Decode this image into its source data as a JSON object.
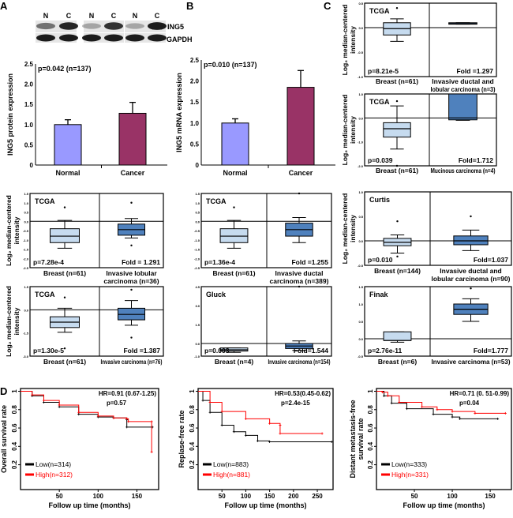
{
  "panel_labels": {
    "a": "A",
    "b": "B",
    "c": "C",
    "d": "D"
  },
  "blot": {
    "lanes": [
      "N",
      "C",
      "N",
      "C",
      "N",
      "C"
    ],
    "rows": [
      "ING5",
      "GAPDH"
    ]
  },
  "chart_data": [
    {
      "type": "bar",
      "id": "A-bar",
      "categories": [
        "Normal",
        "Cancer"
      ],
      "values": [
        1.0,
        1.28
      ],
      "errors": [
        0.12,
        0.27
      ],
      "colors": [
        "#9999ff",
        "#993366"
      ],
      "ylabel": "ING5 protein expression",
      "ylim": [
        0,
        2.5
      ],
      "yticks": [
        "0",
        "0.5",
        "1.0",
        "1.5",
        "2.0",
        "2.5"
      ],
      "annotation": "p=0.042 (n=137)"
    },
    {
      "type": "bar",
      "id": "B-bar",
      "categories": [
        "Normal",
        "Cancer"
      ],
      "values": [
        1.0,
        1.85
      ],
      "errors": [
        0.1,
        0.4
      ],
      "colors": [
        "#9999ff",
        "#993366"
      ],
      "ylabel": "ING5 mRNA expression",
      "ylim": [
        0,
        2.5
      ],
      "yticks": [
        "0",
        "0.5",
        "1.0",
        "1.5",
        "2.0",
        "2.5"
      ],
      "annotation": "p=0.010 (n=137)"
    },
    {
      "type": "box",
      "id": "C1",
      "dataset": "TCGA",
      "p": "p=8.21e-5",
      "fold": "Fold =1.297",
      "ylim": [
        -1.0,
        0.5
      ],
      "yticks": [
        "0.5",
        "0.0",
        "-0.5",
        "-1.0"
      ],
      "groups": [
        {
          "label": [
            "Breast (n=61)"
          ],
          "min": -0.28,
          "q1": -0.15,
          "median": -0.02,
          "q3": 0.1,
          "max": 0.18,
          "outliers": [
            0.4
          ]
        },
        {
          "label": [
            "Invasive ductal and",
            "lobular carcinoma (n=3)"
          ],
          "min": 0.07,
          "q1": 0.07,
          "median": 0.08,
          "q3": 0.1,
          "max": 0.1,
          "outliers": []
        }
      ]
    },
    {
      "type": "box",
      "id": "C2",
      "dataset": "TCGA",
      "p": "p=0.039",
      "fold": "Fold=1.712",
      "ylim": [
        -2.0,
        1.0
      ],
      "yticks": [
        "1.0",
        "0.0",
        "-1.0",
        "-2.0"
      ],
      "groups": [
        {
          "label": [
            "Breast (n=61)"
          ],
          "min": -1.3,
          "q1": -0.8,
          "median": -0.45,
          "q3": -0.2,
          "max": 0.5,
          "outliers": [
            0.7,
            -2.0
          ]
        },
        {
          "label": [
            "Mucinous carcinoma (n=4)"
          ],
          "min": -0.1,
          "q1": -0.08,
          "median": 0.0,
          "q3": 1.0,
          "max": 1.0,
          "outliers": []
        }
      ]
    },
    {
      "type": "box",
      "id": "A-row2",
      "dataset": "TCGA",
      "p": "p=7.28e-4",
      "fold": "Fold = 1.291",
      "ylim": [
        -2.5,
        1.5
      ],
      "yticks": [
        "1.5",
        "1.0",
        "0.5",
        "0.0",
        "-0.5",
        "-1.0",
        "-1.5",
        "-2.0",
        "-2.5"
      ],
      "groups": [
        {
          "label": [
            "Breast (n=61)"
          ],
          "min": -1.45,
          "q1": -1.15,
          "median": -0.8,
          "q3": -0.4,
          "max": 0.05,
          "outliers": [
            0.75
          ]
        },
        {
          "label": [
            "Invasive lobular",
            "carcinoma (n=36)"
          ],
          "min": -0.9,
          "q1": -0.75,
          "median": -0.45,
          "q3": -0.15,
          "max": 0.15,
          "outliers": [
            1.0,
            -1.3
          ]
        }
      ]
    },
    {
      "type": "box",
      "id": "B-row2",
      "dataset": "TCGA",
      "p": "p=1.36e-4",
      "fold": "Fold =1.255",
      "ylim": [
        -2.5,
        1.5
      ],
      "yticks": [
        "1.5",
        "1.0",
        "0.5",
        "0.0",
        "-0.5",
        "-1.0",
        "-1.5",
        "-2.0",
        "-2.5"
      ],
      "groups": [
        {
          "label": [
            "Breast (n=61)"
          ],
          "min": -1.45,
          "q1": -1.15,
          "median": -0.8,
          "q3": -0.4,
          "max": 0.05,
          "outliers": [
            0.75
          ]
        },
        {
          "label": [
            "Invasive ductal",
            "carcinoma (n=389)"
          ],
          "min": -1.15,
          "q1": -0.8,
          "median": -0.45,
          "q3": -0.1,
          "max": 0.2,
          "outliers": [
            1.5
          ]
        }
      ]
    },
    {
      "type": "box",
      "id": "C-row2",
      "dataset": "Curtis",
      "p": "p=0.010",
      "fold": "Fold=1.037",
      "ylim": [
        -0.5,
        1.0
      ],
      "yticks": [
        "1.0",
        "0.5",
        "0.0",
        "-0.5"
      ],
      "groups": [
        {
          "label": [
            "Breast (n=144)"
          ],
          "min": -0.25,
          "q1": -0.1,
          "median": -0.03,
          "q3": 0.05,
          "max": 0.12,
          "outliers": [
            0.4,
            -0.32
          ]
        },
        {
          "label": [
            "Invasive ductal and",
            "lobular carcinoma (n=90)"
          ],
          "min": -0.2,
          "q1": -0.08,
          "median": 0.0,
          "q3": 0.1,
          "max": 0.22,
          "outliers": [
            0.5
          ]
        }
      ]
    },
    {
      "type": "box",
      "id": "A-row3",
      "dataset": "TCGA",
      "p": "p=1.30e-5",
      "fold": "Fold =1.387",
      "ylim": [
        -3.0,
        1.5
      ],
      "yticks": [
        "1.5",
        "0.0",
        "-1.5",
        "-3.0"
      ],
      "groups": [
        {
          "label": [
            "Breast (n=61)"
          ],
          "min": -1.45,
          "q1": -1.15,
          "median": -0.8,
          "q3": -0.45,
          "max": 0.1,
          "outliers": [
            0.8,
            -2.5
          ]
        },
        {
          "label": [
            "Invasive carcinoma (n=76)"
          ],
          "min": -1.0,
          "q1": -0.65,
          "median": -0.3,
          "q3": 0.1,
          "max": 0.6,
          "outliers": [
            1.3,
            -1.8
          ]
        }
      ]
    },
    {
      "type": "box",
      "id": "B-row3",
      "dataset": "Gluck",
      "p": "p=0.003",
      "fold": "Fold=1.544",
      "ylim": [
        -1.0,
        4.5
      ],
      "yticks": [
        "4.5",
        "3.0",
        "1.5",
        "0.0",
        "-1.0"
      ],
      "groups": [
        {
          "label": [
            "Breast (n=4)"
          ],
          "min": -0.7,
          "q1": -0.6,
          "median": -0.5,
          "q3": -0.35,
          "max": -0.35,
          "outliers": []
        },
        {
          "label": [
            "Invasive carcinoma (n=154)"
          ],
          "min": -0.55,
          "q1": -0.4,
          "median": -0.2,
          "q3": 0.0,
          "max": 0.2,
          "outliers": [
            4.5
          ]
        }
      ]
    },
    {
      "type": "box",
      "id": "C-row3",
      "dataset": "Finak",
      "p": "p=2.76e-11",
      "fold": "Fold=1.777",
      "ylim": [
        -0.5,
        1.5
      ],
      "yticks": [
        "1.5",
        "1.0",
        "0.5",
        "0.0",
        "-0.5"
      ],
      "groups": [
        {
          "label": [
            "Breast (n=6)"
          ],
          "min": -0.1,
          "q1": -0.05,
          "median": -0.05,
          "q3": 0.2,
          "max": 0.2,
          "outliers": []
        },
        {
          "label": [
            "Invasive carcinoma (n=53)"
          ],
          "min": 0.5,
          "q1": 0.7,
          "median": 0.85,
          "q3": 1.0,
          "max": 1.15,
          "outliers": [
            1.45
          ]
        }
      ]
    },
    {
      "type": "line",
      "id": "D1",
      "ylabel": "Overall survival rate",
      "xlabel": "Follow up time (months)",
      "xlim": [
        0,
        178
      ],
      "xticks": [
        50,
        100,
        150
      ],
      "ylim": [
        -0.07,
        1.03
      ],
      "yticks": [
        0.2,
        0.4,
        0.6,
        0.8,
        1.0
      ],
      "hr": "HR=0.91 (0.67-1.25)",
      "p": "p=0.57",
      "series": [
        {
          "name": "Low(n=314)",
          "color": "#000000",
          "points": [
            [
              0,
              1
            ],
            [
              15,
              0.95
            ],
            [
              30,
              0.88
            ],
            [
              50,
              0.83
            ],
            [
              75,
              0.75
            ],
            [
              100,
              0.72
            ],
            [
              120,
              0.71
            ],
            [
              137,
              0.69
            ],
            [
              137,
              0.61
            ],
            [
              170,
              0.61
            ]
          ]
        },
        {
          "name": "High(n=312)",
          "color": "#ff0000",
          "points": [
            [
              0,
              1
            ],
            [
              15,
              0.96
            ],
            [
              30,
              0.9
            ],
            [
              50,
              0.85
            ],
            [
              75,
              0.77
            ],
            [
              100,
              0.73
            ],
            [
              120,
              0.71
            ],
            [
              137,
              0.7
            ],
            [
              139,
              0.67
            ],
            [
              169,
              0.67
            ],
            [
              169,
              0.34
            ]
          ]
        }
      ]
    },
    {
      "type": "line",
      "id": "D2",
      "ylabel": "Replase-free rate",
      "xlabel": "Follow up time (months)",
      "xlim": [
        0,
        283
      ],
      "xticks": [
        50,
        100,
        150,
        200,
        250
      ],
      "ylim": [
        -0.07,
        1.03
      ],
      "yticks": [
        0.2,
        0.4,
        0.6,
        0.8,
        1.0
      ],
      "hr": "HR=0.53(0.45-0.62)",
      "p": "p=2.4e-15",
      "series": [
        {
          "name": "Low(n=883)",
          "color": "#000000",
          "points": [
            [
              0,
              1
            ],
            [
              10,
              0.9
            ],
            [
              25,
              0.77
            ],
            [
              50,
              0.63
            ],
            [
              75,
              0.56
            ],
            [
              100,
              0.52
            ],
            [
              125,
              0.46
            ],
            [
              150,
              0.45
            ],
            [
              280,
              0.45
            ]
          ]
        },
        {
          "name": "High(n=881)",
          "color": "#ff0000",
          "points": [
            [
              0,
              1
            ],
            [
              25,
              0.88
            ],
            [
              50,
              0.78
            ],
            [
              100,
              0.7
            ],
            [
              150,
              0.65
            ],
            [
              172,
              0.63
            ],
            [
              172,
              0.54
            ],
            [
              260,
              0.54
            ]
          ]
        }
      ]
    },
    {
      "type": "line",
      "id": "D3",
      "ylabel": [
        "Distant metastasis-free",
        "survival rate"
      ],
      "xlabel": "Follow up time (months)",
      "xlim": [
        0,
        178
      ],
      "xticks": [
        50,
        100,
        150
      ],
      "ylim": [
        -0.07,
        1.03
      ],
      "yticks": [
        0.2,
        0.4,
        0.6,
        0.8,
        1.0
      ],
      "hr": "HR=0.71 (0. 51-0.99)",
      "p": "p=0.04",
      "series": [
        {
          "name": "Low(n=333)",
          "color": "#000000",
          "points": [
            [
              0,
              1
            ],
            [
              10,
              0.95
            ],
            [
              20,
              0.87
            ],
            [
              40,
              0.81
            ],
            [
              75,
              0.75
            ],
            [
              100,
              0.72
            ],
            [
              110,
              0.7
            ],
            [
              160,
              0.7
            ]
          ]
        },
        {
          "name": "High(n=331)",
          "color": "#ff0000",
          "points": [
            [
              0,
              1
            ],
            [
              8,
              0.99
            ],
            [
              15,
              0.95
            ],
            [
              30,
              0.88
            ],
            [
              60,
              0.83
            ],
            [
              80,
              0.8
            ],
            [
              100,
              0.78
            ],
            [
              130,
              0.76
            ],
            [
              170,
              0.76
            ]
          ]
        }
      ]
    }
  ],
  "box_ylabel": [
    "Log₂ median-centered",
    "intensity"
  ],
  "box_colors": {
    "normal": "#c6dbef",
    "tumor": "#4f81bd"
  }
}
